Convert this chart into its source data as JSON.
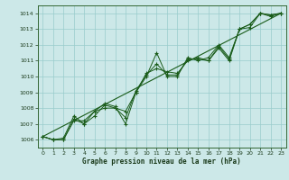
{
  "xlabel": "Graphe pression niveau de la mer (hPa)",
  "background_color": "#cce8e8",
  "grid_color": "#99cccc",
  "line_color": "#1a5c1a",
  "ylim": [
    1005.5,
    1014.5
  ],
  "xlim": [
    -0.5,
    23.5
  ],
  "xticks": [
    0,
    1,
    2,
    3,
    4,
    5,
    6,
    7,
    8,
    9,
    10,
    11,
    12,
    13,
    14,
    15,
    16,
    17,
    18,
    19,
    20,
    21,
    22,
    23
  ],
  "yticks": [
    1006,
    1007,
    1008,
    1009,
    1010,
    1011,
    1012,
    1013,
    1014
  ],
  "series1": [
    1006.2,
    1006.0,
    1006.0,
    1007.2,
    1007.2,
    1007.8,
    1008.3,
    1008.1,
    1007.0,
    1009.0,
    1010.0,
    1011.5,
    1010.0,
    1010.0,
    1011.2,
    1011.0,
    1011.2,
    1012.0,
    1011.2,
    1013.0,
    1013.3,
    1014.0,
    1013.9,
    1014.0
  ],
  "series2": [
    1006.2,
    1006.0,
    1006.1,
    1007.5,
    1007.0,
    1007.8,
    1008.0,
    1008.0,
    1007.8,
    1009.0,
    1010.2,
    1010.5,
    1010.3,
    1010.2,
    1011.0,
    1011.2,
    1011.0,
    1011.8,
    1011.0,
    1013.0,
    1013.3,
    1014.0,
    1013.8,
    1014.0
  ],
  "series3": [
    1006.2,
    1006.0,
    1006.0,
    1007.3,
    1007.0,
    1007.5,
    1008.2,
    1008.0,
    1007.4,
    1009.1,
    1010.1,
    1010.8,
    1010.1,
    1010.1,
    1011.1,
    1011.1,
    1011.0,
    1011.9,
    1011.1,
    1013.0,
    1013.1,
    1014.0,
    1013.9,
    1014.0
  ],
  "trend": [
    1006.2,
    1014.0
  ]
}
